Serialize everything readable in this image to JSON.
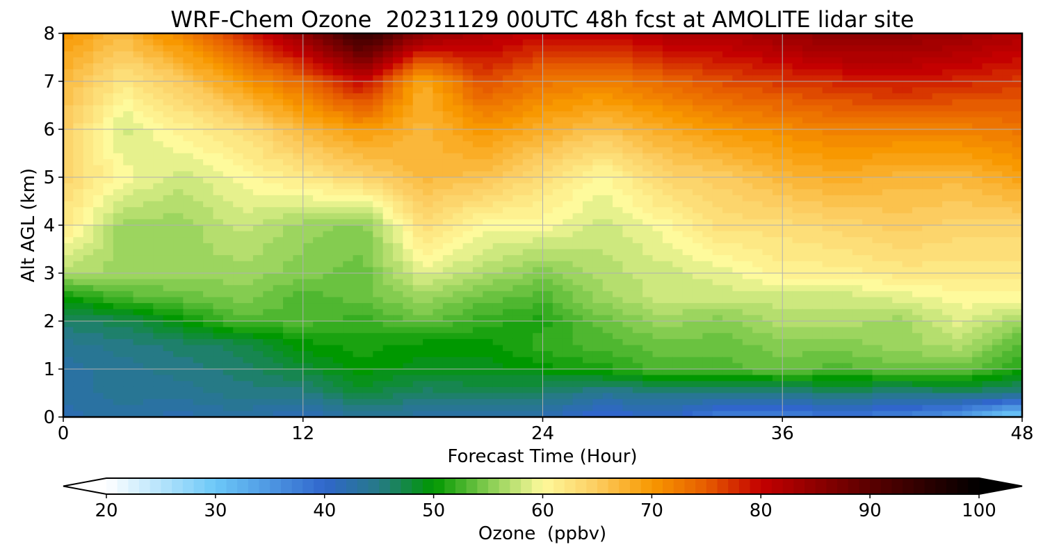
{
  "chart_data": {
    "type": "heatmap",
    "title": "WRF-Chem Ozone  20231129 00UTC 48h fcst at AMOLITE lidar site",
    "xlabel": "Forecast Time (Hour)",
    "ylabel": "Alt AGL (km)",
    "xlim": [
      0,
      48
    ],
    "ylim": [
      0,
      8
    ],
    "xticks": [
      0,
      12,
      24,
      36,
      48
    ],
    "xtick_labels": [
      "0",
      "12",
      "24",
      "36",
      "48"
    ],
    "yticks": [
      0,
      1,
      2,
      3,
      4,
      5,
      6,
      7,
      8
    ],
    "ytick_labels": [
      "0",
      "1",
      "2",
      "3",
      "4",
      "5",
      "6",
      "7",
      "8"
    ],
    "grid": true,
    "x": [
      0,
      3,
      6,
      9,
      12,
      15,
      18,
      21,
      24,
      27,
      30,
      33,
      36,
      39,
      42,
      45,
      48
    ],
    "y": [
      0,
      0.5,
      1,
      1.5,
      2,
      2.5,
      3,
      4,
      5,
      6,
      7,
      8
    ],
    "z": [
      [
        42,
        43,
        42,
        43,
        41,
        44,
        43,
        43,
        42,
        39,
        41,
        37,
        37,
        38,
        37,
        34,
        28
      ],
      [
        43,
        44,
        44,
        45,
        45,
        48,
        46,
        47,
        46,
        44,
        45,
        45,
        45,
        46,
        45,
        46,
        45
      ],
      [
        43,
        44,
        45,
        46,
        48,
        50,
        49,
        49,
        50,
        51,
        53,
        53,
        54,
        53,
        54,
        54,
        51
      ],
      [
        44,
        45,
        46,
        47,
        50,
        51,
        50,
        50,
        52,
        53,
        54,
        54,
        55,
        55,
        56,
        57,
        53
      ],
      [
        46,
        47,
        50,
        53,
        53,
        52,
        54,
        52,
        51,
        54,
        56,
        55,
        57,
        57,
        56,
        59,
        56
      ],
      [
        50,
        53,
        54,
        55,
        53,
        54,
        56,
        54,
        53,
        56,
        58,
        58,
        58,
        58,
        59,
        60,
        60
      ],
      [
        57,
        56,
        56,
        56,
        55,
        54,
        59,
        57,
        55,
        57,
        58,
        59,
        61,
        61,
        62,
        62,
        62
      ],
      [
        62,
        56,
        56,
        58,
        56,
        55,
        63,
        60,
        60,
        58,
        60,
        63,
        63,
        64,
        65,
        64,
        64
      ],
      [
        64,
        60,
        58,
        60,
        62,
        64,
        67,
        66,
        63,
        60,
        64,
        65,
        67,
        68,
        67,
        67,
        69
      ],
      [
        65,
        58,
        61,
        63,
        67,
        70,
        67,
        70,
        68,
        66,
        68,
        70,
        71,
        72,
        72,
        72,
        73
      ],
      [
        67,
        62,
        65,
        70,
        74,
        80,
        68,
        76,
        73,
        72,
        74,
        76,
        77,
        78,
        79,
        78,
        77
      ],
      [
        70,
        67,
        72,
        78,
        85,
        95,
        85,
        82,
        80,
        80,
        82,
        82,
        84,
        86,
        85,
        84,
        82
      ]
    ],
    "colorbar": {
      "label": "Ozone  (ppbv)",
      "min": 20,
      "max": 100,
      "ticks": [
        20,
        30,
        40,
        50,
        60,
        70,
        80,
        90,
        100
      ],
      "tick_labels": [
        "20",
        "30",
        "40",
        "50",
        "60",
        "70",
        "80",
        "90",
        "100"
      ],
      "extend": "both",
      "color_stops": [
        {
          "value": 20,
          "color": "#ffffff"
        },
        {
          "value": 30,
          "color": "#6cc8f8"
        },
        {
          "value": 40,
          "color": "#3066cc"
        },
        {
          "value": 45,
          "color": "#267a86"
        },
        {
          "value": 50,
          "color": "#009800"
        },
        {
          "value": 55,
          "color": "#84cc50"
        },
        {
          "value": 60,
          "color": "#fefa9c"
        },
        {
          "value": 65,
          "color": "#fccc60"
        },
        {
          "value": 70,
          "color": "#f89800"
        },
        {
          "value": 75,
          "color": "#e65c00"
        },
        {
          "value": 80,
          "color": "#c40000"
        },
        {
          "value": 90,
          "color": "#5a0000"
        },
        {
          "value": 100,
          "color": "#000000"
        }
      ]
    }
  }
}
